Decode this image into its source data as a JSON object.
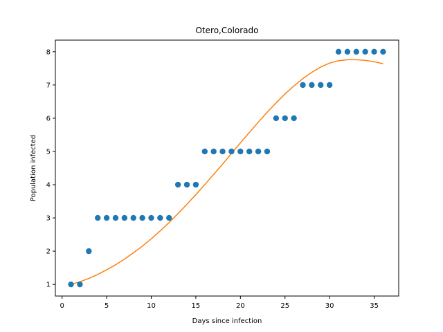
{
  "chart_data": {
    "type": "scatter",
    "title": "Otero,Colorado",
    "xlabel": "Days since infection",
    "ylabel": "Population infected",
    "xlim": [
      -0.75,
      37.75
    ],
    "ylim": [
      0.65,
      8.35
    ],
    "xticks": [
      0,
      5,
      10,
      15,
      20,
      25,
      30,
      35
    ],
    "yticks": [
      1,
      2,
      3,
      4,
      5,
      6,
      7,
      8
    ],
    "grid": false,
    "series": [
      {
        "kind": "scatter",
        "color": "#1f77b4",
        "x": [
          1,
          2,
          3,
          4,
          5,
          6,
          7,
          8,
          9,
          10,
          11,
          12,
          13,
          14,
          15,
          16,
          17,
          18,
          19,
          20,
          21,
          22,
          23,
          24,
          25,
          26,
          27,
          28,
          29,
          30,
          31,
          32,
          33,
          34,
          35,
          36
        ],
        "y": [
          1,
          1,
          2,
          3,
          3,
          3,
          3,
          3,
          3,
          3,
          3,
          3,
          4,
          4,
          4,
          5,
          5,
          5,
          5,
          5,
          5,
          5,
          5,
          6,
          6,
          6,
          7,
          7,
          7,
          7,
          8,
          8,
          8,
          8,
          8,
          8
        ]
      },
      {
        "kind": "line",
        "color": "#ff7f0e",
        "x": [
          1,
          2,
          3,
          4,
          5,
          6,
          7,
          8,
          9,
          10,
          11,
          12,
          13,
          14,
          15,
          16,
          17,
          18,
          19,
          20,
          21,
          22,
          23,
          24,
          25,
          26,
          27,
          28,
          29,
          30,
          31,
          32,
          33,
          34,
          35,
          36
        ],
        "y": [
          1.0,
          1.08,
          1.18,
          1.3,
          1.44,
          1.59,
          1.76,
          1.95,
          2.15,
          2.37,
          2.61,
          2.86,
          3.13,
          3.41,
          3.7,
          4.0,
          4.31,
          4.62,
          4.94,
          5.26,
          5.57,
          5.88,
          6.18,
          6.46,
          6.73,
          6.97,
          7.19,
          7.38,
          7.54,
          7.66,
          7.73,
          7.76,
          7.76,
          7.74,
          7.7,
          7.64
        ]
      }
    ]
  }
}
